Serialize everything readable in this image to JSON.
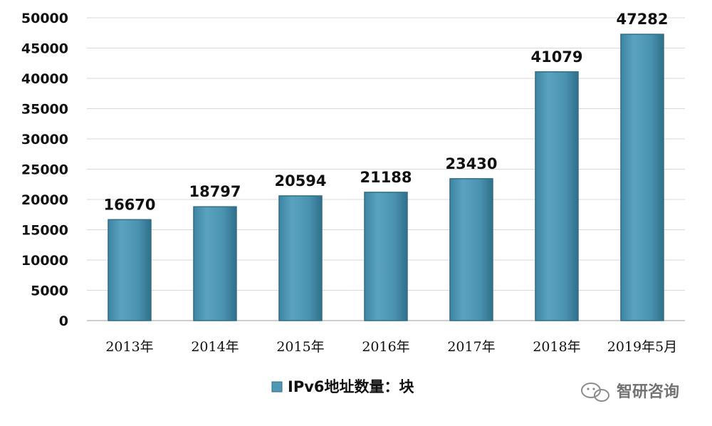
{
  "chart_data": {
    "type": "bar",
    "categories": [
      "2013年",
      "2014年",
      "2015年",
      "2016年",
      "2017年",
      "2018年",
      "2019年5月"
    ],
    "series": [
      {
        "name": "IPv6地址数量：块",
        "values": [
          16670,
          18797,
          20594,
          21188,
          23430,
          41079,
          47282
        ]
      }
    ],
    "ylim": [
      0,
      50000
    ],
    "yticks": [
      "0",
      "5000",
      "10000",
      "15000",
      "20000",
      "25000",
      "30000",
      "35000",
      "40000",
      "45000",
      "50000"
    ],
    "ytick_values": [
      0,
      5000,
      10000,
      15000,
      20000,
      25000,
      30000,
      35000,
      40000,
      45000,
      50000
    ],
    "grid": true,
    "legend_position": "bottom",
    "bar_color": "#4f97b3",
    "bar_color_dark": "#2f6f89",
    "grid_color": "#d9d9d9"
  },
  "watermark": {
    "text": "智研咨询",
    "icon": "wechat-icon"
  }
}
